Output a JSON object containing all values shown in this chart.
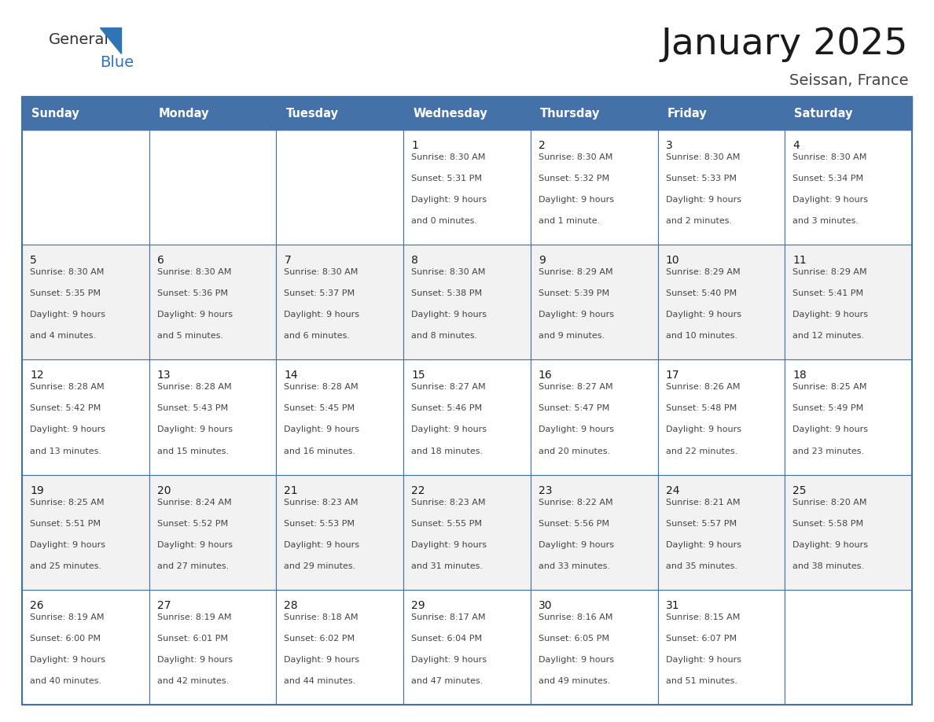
{
  "title": "January 2025",
  "subtitle": "Seissan, France",
  "days_of_week": [
    "Sunday",
    "Monday",
    "Tuesday",
    "Wednesday",
    "Thursday",
    "Friday",
    "Saturday"
  ],
  "header_bg": "#4472A8",
  "header_text": "#FFFFFF",
  "cell_bg_white": "#FFFFFF",
  "cell_bg_gray": "#F2F2F2",
  "border_color": "#4472A8",
  "text_color": "#444444",
  "title_color": "#1a1a1a",
  "logo_general_color": "#333333",
  "logo_blue_color": "#2E75B6",
  "calendar_data": [
    [
      null,
      null,
      null,
      {
        "day": "1",
        "sunrise": "8:30 AM",
        "sunset": "5:31 PM",
        "daylight_line1": "Daylight: 9 hours",
        "daylight_line2": "and 0 minutes."
      },
      {
        "day": "2",
        "sunrise": "8:30 AM",
        "sunset": "5:32 PM",
        "daylight_line1": "Daylight: 9 hours",
        "daylight_line2": "and 1 minute."
      },
      {
        "day": "3",
        "sunrise": "8:30 AM",
        "sunset": "5:33 PM",
        "daylight_line1": "Daylight: 9 hours",
        "daylight_line2": "and 2 minutes."
      },
      {
        "day": "4",
        "sunrise": "8:30 AM",
        "sunset": "5:34 PM",
        "daylight_line1": "Daylight: 9 hours",
        "daylight_line2": "and 3 minutes."
      }
    ],
    [
      {
        "day": "5",
        "sunrise": "8:30 AM",
        "sunset": "5:35 PM",
        "daylight_line1": "Daylight: 9 hours",
        "daylight_line2": "and 4 minutes."
      },
      {
        "day": "6",
        "sunrise": "8:30 AM",
        "sunset": "5:36 PM",
        "daylight_line1": "Daylight: 9 hours",
        "daylight_line2": "and 5 minutes."
      },
      {
        "day": "7",
        "sunrise": "8:30 AM",
        "sunset": "5:37 PM",
        "daylight_line1": "Daylight: 9 hours",
        "daylight_line2": "and 6 minutes."
      },
      {
        "day": "8",
        "sunrise": "8:30 AM",
        "sunset": "5:38 PM",
        "daylight_line1": "Daylight: 9 hours",
        "daylight_line2": "and 8 minutes."
      },
      {
        "day": "9",
        "sunrise": "8:29 AM",
        "sunset": "5:39 PM",
        "daylight_line1": "Daylight: 9 hours",
        "daylight_line2": "and 9 minutes."
      },
      {
        "day": "10",
        "sunrise": "8:29 AM",
        "sunset": "5:40 PM",
        "daylight_line1": "Daylight: 9 hours",
        "daylight_line2": "and 10 minutes."
      },
      {
        "day": "11",
        "sunrise": "8:29 AM",
        "sunset": "5:41 PM",
        "daylight_line1": "Daylight: 9 hours",
        "daylight_line2": "and 12 minutes."
      }
    ],
    [
      {
        "day": "12",
        "sunrise": "8:28 AM",
        "sunset": "5:42 PM",
        "daylight_line1": "Daylight: 9 hours",
        "daylight_line2": "and 13 minutes."
      },
      {
        "day": "13",
        "sunrise": "8:28 AM",
        "sunset": "5:43 PM",
        "daylight_line1": "Daylight: 9 hours",
        "daylight_line2": "and 15 minutes."
      },
      {
        "day": "14",
        "sunrise": "8:28 AM",
        "sunset": "5:45 PM",
        "daylight_line1": "Daylight: 9 hours",
        "daylight_line2": "and 16 minutes."
      },
      {
        "day": "15",
        "sunrise": "8:27 AM",
        "sunset": "5:46 PM",
        "daylight_line1": "Daylight: 9 hours",
        "daylight_line2": "and 18 minutes."
      },
      {
        "day": "16",
        "sunrise": "8:27 AM",
        "sunset": "5:47 PM",
        "daylight_line1": "Daylight: 9 hours",
        "daylight_line2": "and 20 minutes."
      },
      {
        "day": "17",
        "sunrise": "8:26 AM",
        "sunset": "5:48 PM",
        "daylight_line1": "Daylight: 9 hours",
        "daylight_line2": "and 22 minutes."
      },
      {
        "day": "18",
        "sunrise": "8:25 AM",
        "sunset": "5:49 PM",
        "daylight_line1": "Daylight: 9 hours",
        "daylight_line2": "and 23 minutes."
      }
    ],
    [
      {
        "day": "19",
        "sunrise": "8:25 AM",
        "sunset": "5:51 PM",
        "daylight_line1": "Daylight: 9 hours",
        "daylight_line2": "and 25 minutes."
      },
      {
        "day": "20",
        "sunrise": "8:24 AM",
        "sunset": "5:52 PM",
        "daylight_line1": "Daylight: 9 hours",
        "daylight_line2": "and 27 minutes."
      },
      {
        "day": "21",
        "sunrise": "8:23 AM",
        "sunset": "5:53 PM",
        "daylight_line1": "Daylight: 9 hours",
        "daylight_line2": "and 29 minutes."
      },
      {
        "day": "22",
        "sunrise": "8:23 AM",
        "sunset": "5:55 PM",
        "daylight_line1": "Daylight: 9 hours",
        "daylight_line2": "and 31 minutes."
      },
      {
        "day": "23",
        "sunrise": "8:22 AM",
        "sunset": "5:56 PM",
        "daylight_line1": "Daylight: 9 hours",
        "daylight_line2": "and 33 minutes."
      },
      {
        "day": "24",
        "sunrise": "8:21 AM",
        "sunset": "5:57 PM",
        "daylight_line1": "Daylight: 9 hours",
        "daylight_line2": "and 35 minutes."
      },
      {
        "day": "25",
        "sunrise": "8:20 AM",
        "sunset": "5:58 PM",
        "daylight_line1": "Daylight: 9 hours",
        "daylight_line2": "and 38 minutes."
      }
    ],
    [
      {
        "day": "26",
        "sunrise": "8:19 AM",
        "sunset": "6:00 PM",
        "daylight_line1": "Daylight: 9 hours",
        "daylight_line2": "and 40 minutes."
      },
      {
        "day": "27",
        "sunrise": "8:19 AM",
        "sunset": "6:01 PM",
        "daylight_line1": "Daylight: 9 hours",
        "daylight_line2": "and 42 minutes."
      },
      {
        "day": "28",
        "sunrise": "8:18 AM",
        "sunset": "6:02 PM",
        "daylight_line1": "Daylight: 9 hours",
        "daylight_line2": "and 44 minutes."
      },
      {
        "day": "29",
        "sunrise": "8:17 AM",
        "sunset": "6:04 PM",
        "daylight_line1": "Daylight: 9 hours",
        "daylight_line2": "and 47 minutes."
      },
      {
        "day": "30",
        "sunrise": "8:16 AM",
        "sunset": "6:05 PM",
        "daylight_line1": "Daylight: 9 hours",
        "daylight_line2": "and 49 minutes."
      },
      {
        "day": "31",
        "sunrise": "8:15 AM",
        "sunset": "6:07 PM",
        "daylight_line1": "Daylight: 9 hours",
        "daylight_line2": "and 51 minutes."
      },
      null
    ]
  ]
}
